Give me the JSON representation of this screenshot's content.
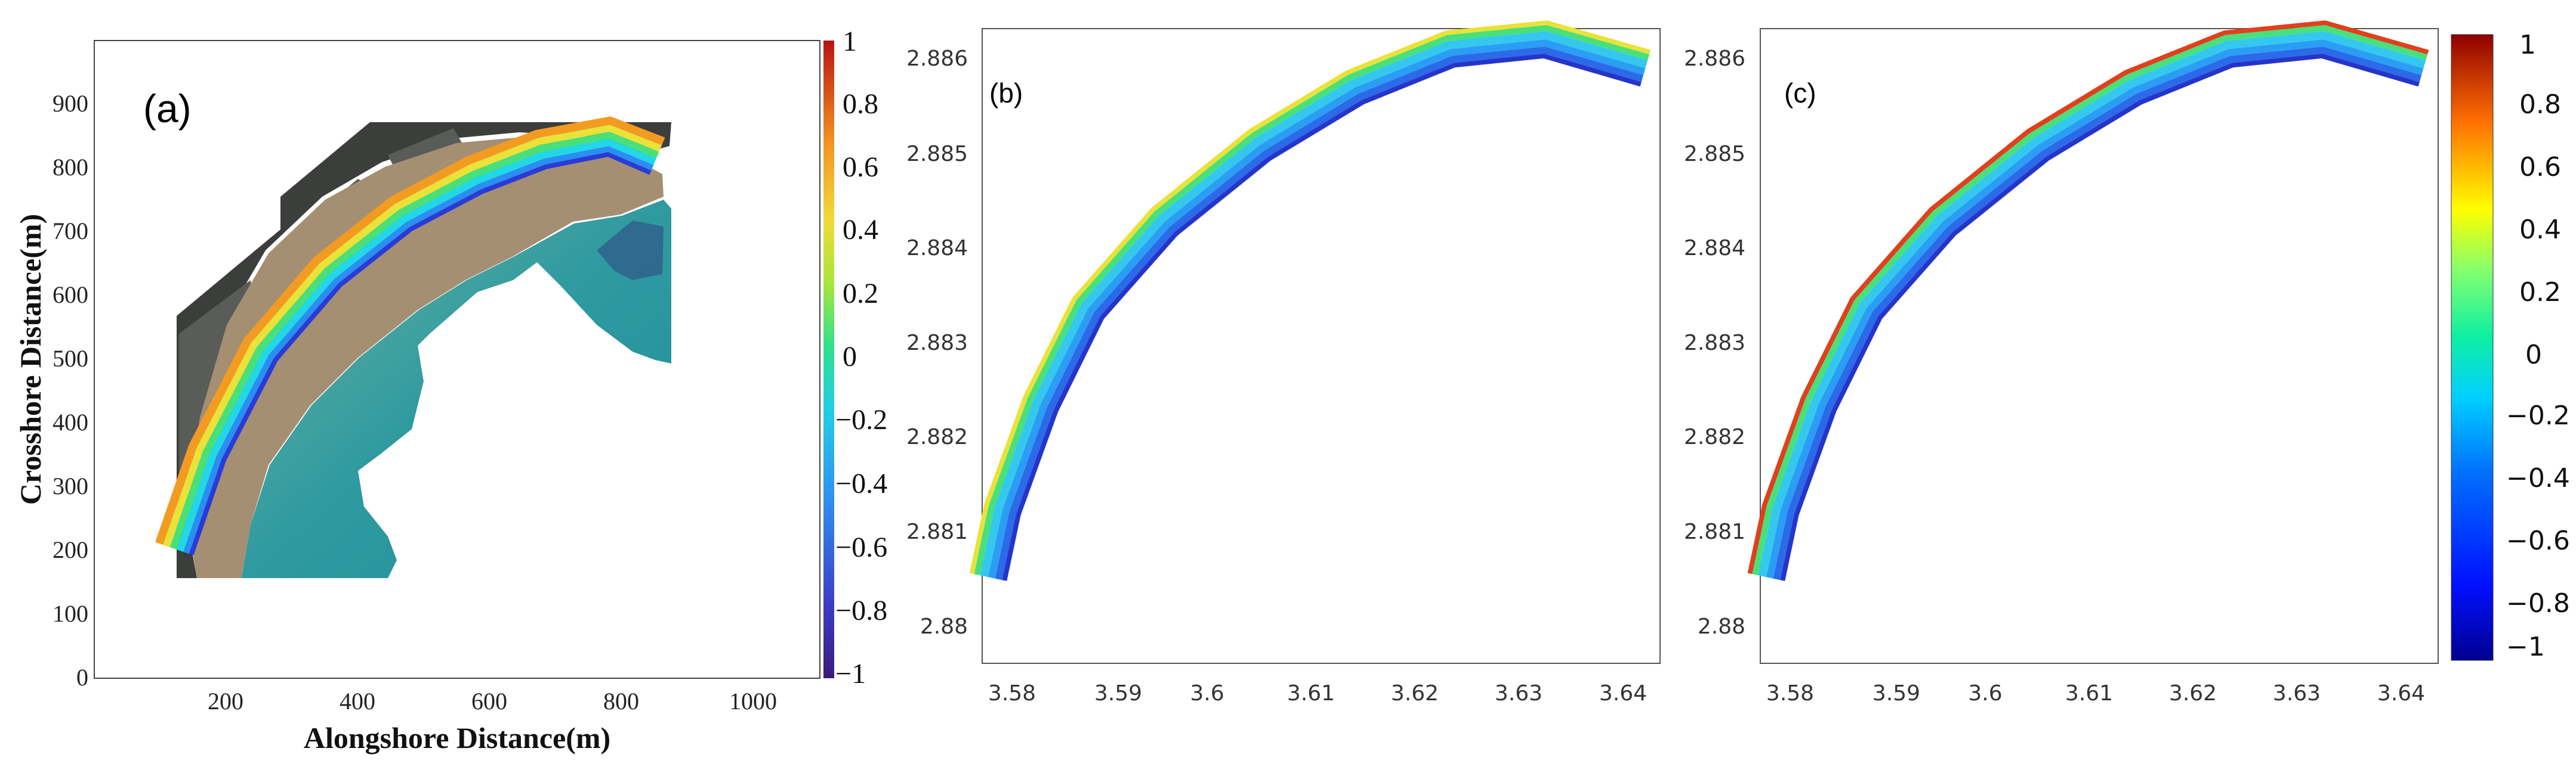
{
  "colors": {
    "beach_band": [
      "#2a3bd6",
      "#2a8ef2",
      "#21d7e8",
      "#48e07a",
      "#e8e23a",
      "#f39b21",
      "#e33417"
    ],
    "water": "#2b9a9a",
    "sand": "#9d8a6f",
    "land": "#3c3e3c"
  },
  "chart_data": [
    {
      "type": "heatmap",
      "panel": "(a)",
      "xlabel": "Alongshore Distance(m)",
      "ylabel": "Crosshore Distance(m)",
      "xlim": [
        0,
        1100
      ],
      "ylim": [
        0,
        1000
      ],
      "x_ticks": [
        "200",
        "400",
        "600",
        "800",
        "1000"
      ],
      "y_ticks": [
        "0",
        "100",
        "200",
        "300",
        "400",
        "500",
        "600",
        "700",
        "800",
        "900"
      ],
      "shoreline_band": {
        "x": [
          130,
          180,
          260,
          360,
          470,
          580,
          680,
          780,
          850
        ],
        "y": [
          200,
          350,
          510,
          630,
          720,
          780,
          820,
          840,
          810
        ]
      },
      "colorbar": {
        "range": [
          -1,
          1
        ],
        "tick_labels": [
          "1",
          "0.8",
          "0.6",
          "0.4",
          "0.2",
          "0",
          "−0.2",
          "−0.4",
          "−0.6",
          "−0.8",
          "−1"
        ]
      }
    },
    {
      "type": "heatmap",
      "panel": "(b)",
      "xlim": [
        3.577,
        3.648
      ],
      "ylim": [
        2.8796,
        2.8862
      ],
      "x_ticks": [
        "3.58",
        "3.59",
        "3.6",
        "3.61",
        "3.62",
        "3.63",
        "3.64"
      ],
      "y_ticks": [
        "2.88",
        "2.881",
        "2.882",
        "2.883",
        "2.884",
        "2.885",
        "2.886"
      ],
      "band_centerline": {
        "x": [
          3.5775,
          3.579,
          3.583,
          3.588,
          3.596,
          3.606,
          3.616,
          3.626,
          3.636,
          3.6465
        ],
        "y": [
          2.8805,
          2.8812,
          2.8823,
          2.8833,
          2.8842,
          2.885,
          2.8856,
          2.886,
          2.8861,
          2.8858
        ]
      }
    },
    {
      "type": "heatmap",
      "panel": "(c)",
      "xlim": [
        3.577,
        3.648
      ],
      "ylim": [
        2.8796,
        2.8862
      ],
      "x_ticks": [
        "3.58",
        "3.59",
        "3.6",
        "3.61",
        "3.62",
        "3.63",
        "3.64"
      ],
      "y_ticks": [
        "2.88",
        "2.881",
        "2.882",
        "2.883",
        "2.884",
        "2.885",
        "2.886"
      ],
      "band_centerline": {
        "x": [
          3.5775,
          3.579,
          3.583,
          3.588,
          3.596,
          3.606,
          3.616,
          3.626,
          3.636,
          3.6465
        ],
        "y": [
          2.8805,
          2.8812,
          2.8823,
          2.8833,
          2.8842,
          2.885,
          2.8856,
          2.886,
          2.8861,
          2.8858
        ]
      },
      "colorbar": {
        "range": [
          -1,
          1
        ],
        "tick_labels": [
          "1",
          "0.8",
          "0.6",
          "0.4",
          "0.2",
          "0",
          "−0.2",
          "−0.4",
          "−0.6",
          "−0.8",
          "−1"
        ]
      }
    }
  ]
}
